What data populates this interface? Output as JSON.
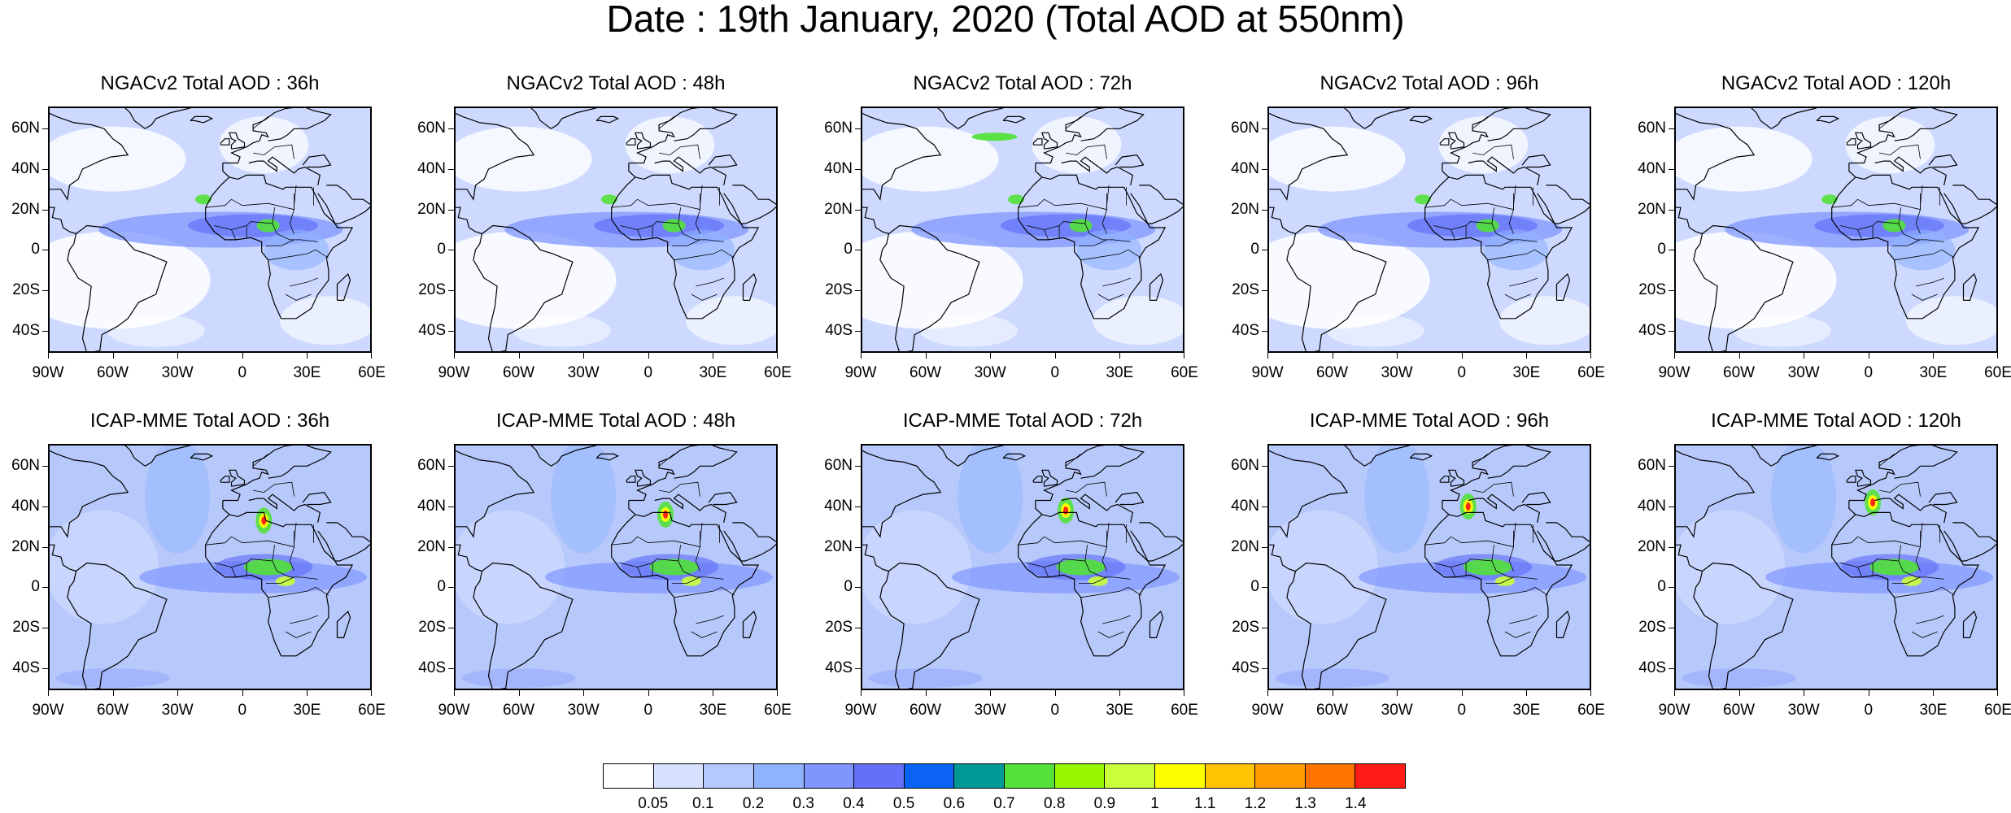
{
  "title": "Date : 19th January, 2020 (Total AOD at 550nm)",
  "panels": [
    {
      "title": "NGACv2 Total AOD : 36h"
    },
    {
      "title": "NGACv2 Total AOD : 48h"
    },
    {
      "title": "NGACv2 Total AOD : 72h"
    },
    {
      "title": "NGACv2 Total AOD : 96h"
    },
    {
      "title": "NGACv2 Total AOD : 120h"
    },
    {
      "title": "ICAP-MME Total AOD : 36h"
    },
    {
      "title": "ICAP-MME Total AOD : 48h"
    },
    {
      "title": "ICAP-MME Total AOD : 72h"
    },
    {
      "title": "ICAP-MME Total AOD : 96h"
    },
    {
      "title": "ICAP-MME Total AOD : 120h"
    }
  ],
  "lat_labels": [
    "60N",
    "40N",
    "20N",
    "0",
    "20S",
    "40S"
  ],
  "lon_labels": [
    "90W",
    "60W",
    "30W",
    "0",
    "30E",
    "60E"
  ],
  "colorbar": {
    "labels": [
      "0.05",
      "0.1",
      "0.2",
      "0.3",
      "0.4",
      "0.5",
      "0.6",
      "0.7",
      "0.8",
      "0.9",
      "1",
      "1.1",
      "1.2",
      "1.3",
      "1.4"
    ],
    "colors": [
      "#ffffff",
      "#d6e2ff",
      "#b5c9ff",
      "#8fb3ff",
      "#7f96ff",
      "#6370f8",
      "#0b63f6",
      "#009a96",
      "#53e13a",
      "#96f700",
      "#cbff3b",
      "#ffff00",
      "#ffc400",
      "#ff9c00",
      "#ff7500",
      "#ff1b16"
    ]
  }
}
